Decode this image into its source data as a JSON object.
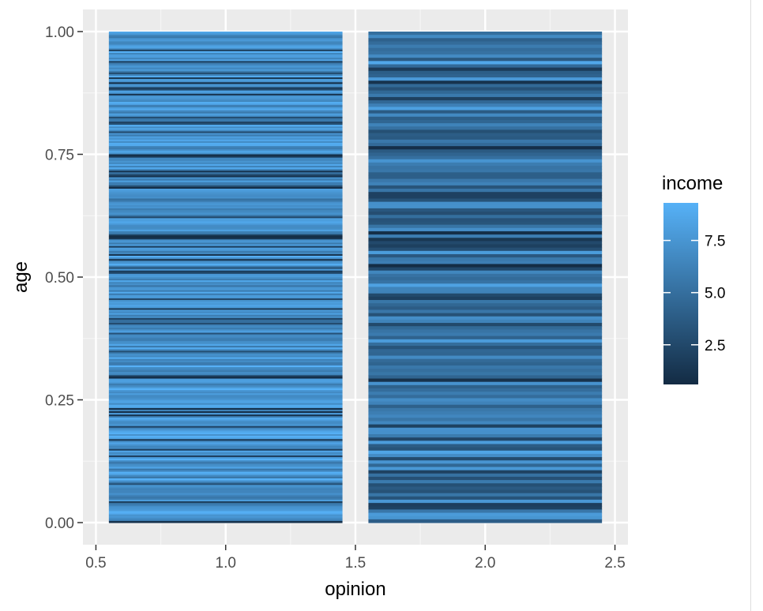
{
  "chart_data": {
    "type": "heatmap",
    "title": "",
    "xlabel": "opinion",
    "ylabel": "age",
    "xlim": [
      0.45,
      2.55
    ],
    "ylim": [
      -0.045,
      1.045
    ],
    "x_ticks": [
      0.5,
      1.0,
      1.5,
      2.0,
      2.5
    ],
    "x_tick_labels": [
      "0.5",
      "1.0",
      "1.5",
      "2.0",
      "2.5"
    ],
    "y_ticks": [
      0.0,
      0.25,
      0.5,
      0.75,
      1.0
    ],
    "y_tick_labels": [
      "0.00",
      "0.25",
      "0.50",
      "0.75",
      "1.00"
    ],
    "grid": true,
    "legend": {
      "title": "income",
      "placement": "right",
      "range": [
        0.6,
        9.3
      ],
      "breaks": [
        2.5,
        5.0,
        7.5
      ],
      "break_labels": [
        "2.5",
        "5.0",
        "7.5"
      ],
      "color_low": "#132b43",
      "color_high": "#56b1f7"
    },
    "columns": [
      {
        "opinion": 1,
        "x_range": [
          0.55,
          1.45
        ],
        "rows": 300,
        "mean_income": 7.3,
        "spread": 1.6
      },
      {
        "opinion": 2,
        "x_range": [
          1.55,
          2.45
        ],
        "rows": 150,
        "mean_income": 5.0,
        "spread": 2.4
      }
    ],
    "colors": {
      "panel_background": "#ebebeb",
      "grid_major": "#ffffff",
      "grid_minor": "#f5f5f5"
    }
  }
}
